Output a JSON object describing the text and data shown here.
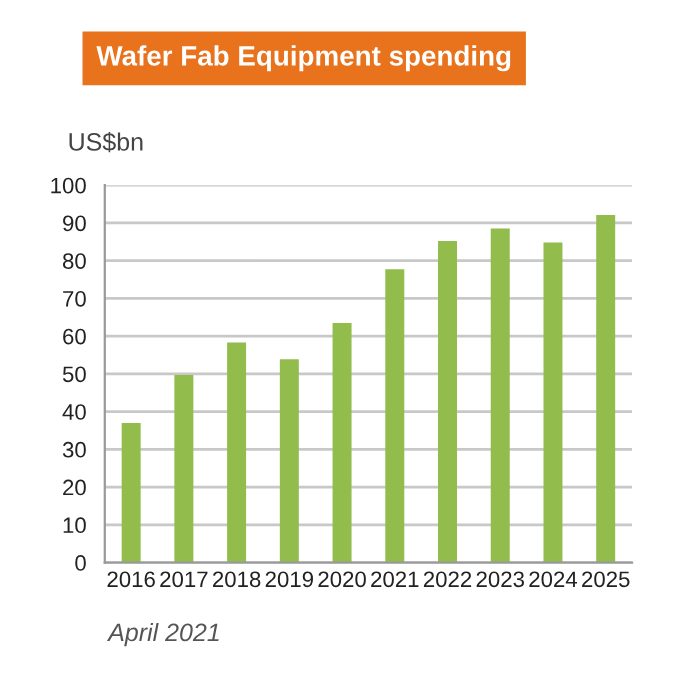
{
  "chart_data": {
    "type": "bar",
    "title": "Wafer Fab Equipment spending",
    "ylabel": "US$bn",
    "categories": [
      "2016",
      "2017",
      "2018",
      "2019",
      "2020",
      "2021",
      "2022",
      "2023",
      "2024",
      "2025"
    ],
    "values": [
      37,
      49.7,
      58.3,
      53.9,
      63.5,
      77.7,
      85.2,
      88.5,
      84.8,
      92.1
    ],
    "color": "#92bc4c",
    "ylim": [
      0,
      100
    ],
    "yticks": [
      0,
      10,
      20,
      30,
      40,
      50,
      60,
      70,
      80,
      90,
      100
    ],
    "grid": "y",
    "annotations": [
      "April 2021"
    ]
  }
}
